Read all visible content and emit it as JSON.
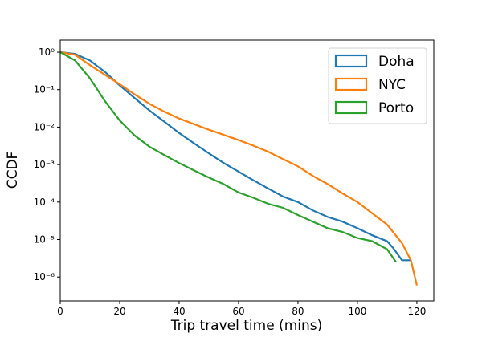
{
  "chart_data": {
    "type": "line",
    "xlabel": "Trip travel time (mins)",
    "ylabel": "CCDF",
    "xlim": [
      0,
      125.7
    ],
    "ylim": [
      2.3e-07,
      2.1
    ],
    "yscale": "log",
    "legend": "upper right",
    "xticks": [
      0,
      20,
      40,
      60,
      80,
      100,
      120
    ],
    "yticks": [
      {
        "value": 1e-06,
        "label": "10⁻⁶"
      },
      {
        "value": 1e-05,
        "label": "10⁻⁵"
      },
      {
        "value": 0.0001,
        "label": "10⁻⁴"
      },
      {
        "value": 0.001,
        "label": "10⁻³"
      },
      {
        "value": 0.01,
        "label": "10⁻²"
      },
      {
        "value": 0.1,
        "label": "10⁻¹"
      },
      {
        "value": 1,
        "label": "10⁰"
      }
    ],
    "series": [
      {
        "name": "Doha",
        "color": "#1f77b4",
        "x": [
          0,
          5,
          10,
          15,
          20,
          25,
          30,
          35,
          40,
          45,
          50,
          55,
          60,
          65,
          70,
          75,
          80,
          85,
          90,
          95,
          100,
          105,
          110,
          112,
          115,
          118
        ],
        "values": [
          1,
          0.9,
          0.6,
          0.3,
          0.13,
          0.06,
          0.028,
          0.014,
          0.007,
          0.0037,
          0.002,
          0.0011,
          0.00065,
          0.00038,
          0.00023,
          0.00014,
          0.0001,
          6e-05,
          4e-05,
          3e-05,
          2e-05,
          1.3e-05,
          9e-06,
          6e-06,
          2.8e-06,
          2.8e-06
        ]
      },
      {
        "name": "NYC",
        "color": "#ff7f0e",
        "x": [
          0,
          5,
          10,
          15,
          20,
          25,
          30,
          35,
          40,
          45,
          50,
          55,
          60,
          65,
          70,
          75,
          80,
          85,
          90,
          95,
          100,
          105,
          110,
          115,
          118,
          120
        ],
        "values": [
          1,
          0.85,
          0.45,
          0.25,
          0.14,
          0.075,
          0.042,
          0.026,
          0.017,
          0.012,
          0.0085,
          0.0062,
          0.0045,
          0.0032,
          0.0022,
          0.0014,
          0.0009,
          0.0005,
          0.0003,
          0.00017,
          0.0001,
          5e-05,
          2.5e-05,
          8e-06,
          2.8e-06,
          6e-07
        ]
      },
      {
        "name": "Porto",
        "color": "#2ca02c",
        "x": [
          0,
          5,
          10,
          15,
          20,
          25,
          30,
          35,
          40,
          45,
          50,
          55,
          60,
          65,
          70,
          75,
          80,
          85,
          90,
          95,
          100,
          105,
          110,
          113
        ],
        "values": [
          1,
          0.6,
          0.2,
          0.05,
          0.015,
          0.006,
          0.003,
          0.0018,
          0.0011,
          0.0007,
          0.00045,
          0.0003,
          0.00018,
          0.00013,
          9e-05,
          7e-05,
          4.5e-05,
          3e-05,
          2e-05,
          1.6e-05,
          1.1e-05,
          9e-06,
          5.5e-06,
          2.5e-06
        ]
      }
    ]
  }
}
